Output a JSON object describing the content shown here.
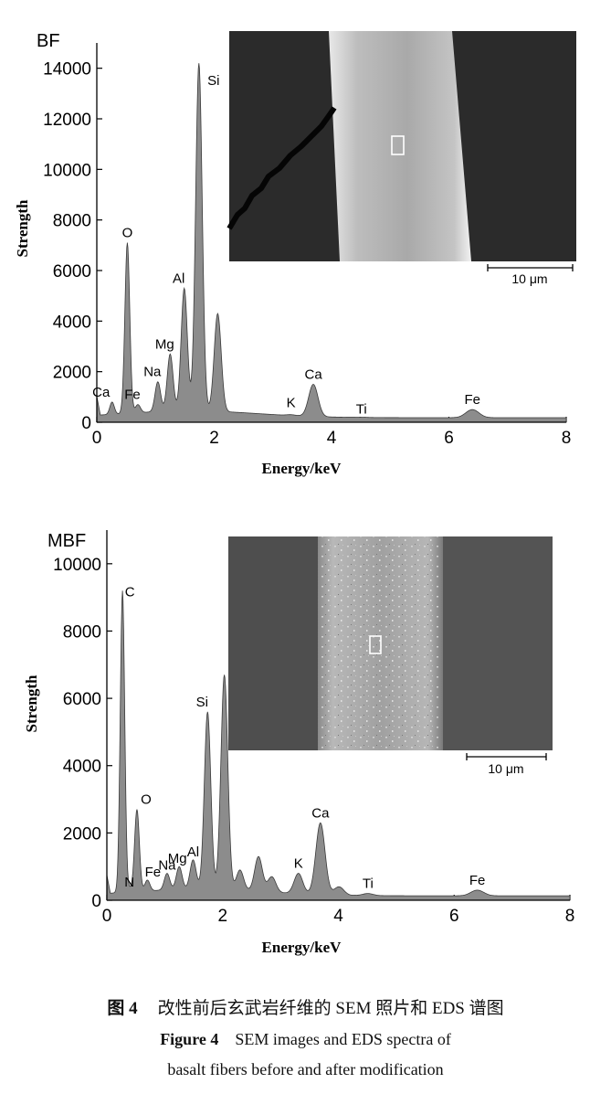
{
  "chart_data": [
    {
      "type": "area",
      "title": "BF",
      "xlabel": "Energy/keV",
      "ylabel": "Strength",
      "xlim": [
        0,
        8
      ],
      "ylim": [
        0,
        15000
      ],
      "x_ticks": [
        "0",
        "2",
        "4",
        "6",
        "8"
      ],
      "y_ticks": [
        "0",
        "2000",
        "4000",
        "6000",
        "8000",
        "10000",
        "12000",
        "14000"
      ],
      "grid": false,
      "peaks": [
        {
          "label": "Ca",
          "x": 0.26,
          "y": 800
        },
        {
          "label": "O",
          "x": 0.52,
          "y": 7100
        },
        {
          "label": "Fe",
          "x": 0.7,
          "y": 700
        },
        {
          "label": "Na",
          "x": 1.04,
          "y": 1600
        },
        {
          "label": "Mg",
          "x": 1.25,
          "y": 2700
        },
        {
          "label": "Al",
          "x": 1.49,
          "y": 5300
        },
        {
          "label": "Si",
          "x": 1.74,
          "y": 14200
        },
        {
          "label": "",
          "x": 2.06,
          "y": 4300
        },
        {
          "label": "K",
          "x": 3.31,
          "y": 300
        },
        {
          "label": "Ca",
          "x": 3.69,
          "y": 1500
        },
        {
          "label": "Ti",
          "x": 4.51,
          "y": 200
        },
        {
          "label": "Fe",
          "x": 6.4,
          "y": 500
        }
      ],
      "inset": {
        "scale_bar": "10 μm"
      }
    },
    {
      "type": "area",
      "title": "MBF",
      "xlabel": "Energy/keV",
      "ylabel": "Strength",
      "xlim": [
        0,
        8
      ],
      "ylim": [
        0,
        11000
      ],
      "x_ticks": [
        "0",
        "2",
        "4",
        "6",
        "8"
      ],
      "y_ticks": [
        "0",
        "2000",
        "4000",
        "6000",
        "8000",
        "10000"
      ],
      "grid": false,
      "peaks": [
        {
          "label": "C",
          "x": 0.27,
          "y": 9200
        },
        {
          "label": "N",
          "x": 0.39,
          "y": 350
        },
        {
          "label": "O",
          "x": 0.52,
          "y": 2700
        },
        {
          "label": "Fe",
          "x": 0.7,
          "y": 600
        },
        {
          "label": "Na",
          "x": 1.04,
          "y": 800
        },
        {
          "label": "Mg",
          "x": 1.25,
          "y": 1000
        },
        {
          "label": "Al",
          "x": 1.49,
          "y": 1200
        },
        {
          "label": "Si",
          "x": 1.74,
          "y": 5600
        },
        {
          "label": "",
          "x": 2.03,
          "y": 6700
        },
        {
          "label": "",
          "x": 2.3,
          "y": 900
        },
        {
          "label": "",
          "x": 2.62,
          "y": 1300
        },
        {
          "label": "",
          "x": 2.85,
          "y": 700
        },
        {
          "label": "K",
          "x": 3.31,
          "y": 800
        },
        {
          "label": "Ca",
          "x": 3.69,
          "y": 2300
        },
        {
          "label": "",
          "x": 4.01,
          "y": 400
        },
        {
          "label": "Ti",
          "x": 4.51,
          "y": 200
        },
        {
          "label": "Fe",
          "x": 6.4,
          "y": 300
        }
      ],
      "inset": {
        "scale_bar": "10 μm"
      }
    }
  ],
  "caption": {
    "zh_label": "图 4",
    "zh_text": "改性前后玄武岩纤维的 SEM 照片和 EDS 谱图",
    "en_label": "Figure 4",
    "en_text_line1": "SEM images and EDS spectra of",
    "en_text_line2": "basalt fibers before and after modification"
  },
  "colors": {
    "spectrum_fill": "#8c8c8c",
    "spectrum_line": "#3a3a3a",
    "axis": "#000000",
    "bf_background": "#2b2b2b",
    "mbf_background": "#545454"
  }
}
